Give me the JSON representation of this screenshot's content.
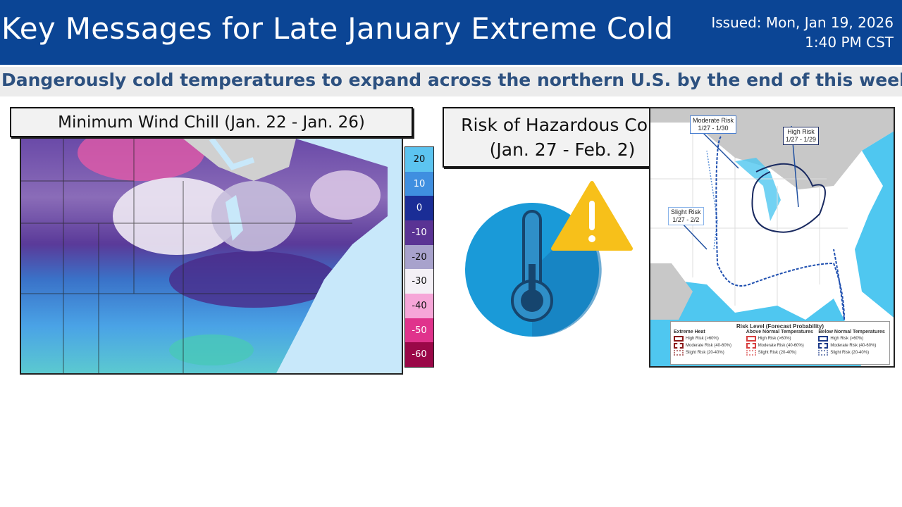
{
  "header": {
    "title": "Key Messages for Late January Extreme Cold",
    "issued_line1": "Issued: Mon, Jan 19, 2026",
    "issued_line2": "1:40 PM CST"
  },
  "subtitle": "Dangerously cold temperatures to expand across the northern U.S. by the end of this week",
  "wind_chill": {
    "title": "Minimum Wind Chill (Jan. 22 - Jan. 26)",
    "colorbar": [
      {
        "label": "20",
        "color": "#5cc4f0"
      },
      {
        "label": "10",
        "color": "#3f8fe0"
      },
      {
        "label": "0",
        "color": "#1a2d96"
      },
      {
        "label": "-10",
        "color": "#5a3394"
      },
      {
        "label": "-20",
        "color": "#a8a2cc"
      },
      {
        "label": "-30",
        "color": "#f4f0f6"
      },
      {
        "label": "-40",
        "color": "#f6a6d8"
      },
      {
        "label": "-50",
        "color": "#e0338c"
      },
      {
        "label": "-60",
        "color": "#9a0848"
      }
    ]
  },
  "hazard": {
    "title_line1": "Risk of Hazardous Cold",
    "title_line2": "(Jan. 27 - Feb. 2)",
    "icons": [
      "thermometer-icon",
      "warning-icon"
    ],
    "warning_color": "#f7c01a",
    "circle_color": "#1a9ad8"
  },
  "risk_map": {
    "callouts": [
      {
        "label": "Moderate Risk",
        "dates": "1/27 - 1/30"
      },
      {
        "label": "High Risk",
        "dates": "1/27 - 1/29"
      },
      {
        "label": "Slight Risk",
        "dates": "1/27 - 2/2"
      }
    ],
    "legend": {
      "title": "Risk Level (Forecast Probability)",
      "columns": [
        {
          "heading": "Extreme Heat",
          "color": "#8b1a1a",
          "items": [
            "High Risk (>60%)",
            "Moderate Risk (40-60%)",
            "Slight Risk (20-40%)"
          ]
        },
        {
          "heading": "Above Normal Temperatures",
          "color": "#d84040",
          "items": [
            "High Risk (>60%)",
            "Moderate Risk (40-60%)",
            "Slight Risk (20-40%)"
          ]
        },
        {
          "heading": "Below Normal Temperatures",
          "color": "#1f3c8a",
          "items": [
            "High Risk (>60%)",
            "Moderate Risk (40-60%)",
            "Slight Risk (20-40%)"
          ]
        }
      ]
    }
  }
}
